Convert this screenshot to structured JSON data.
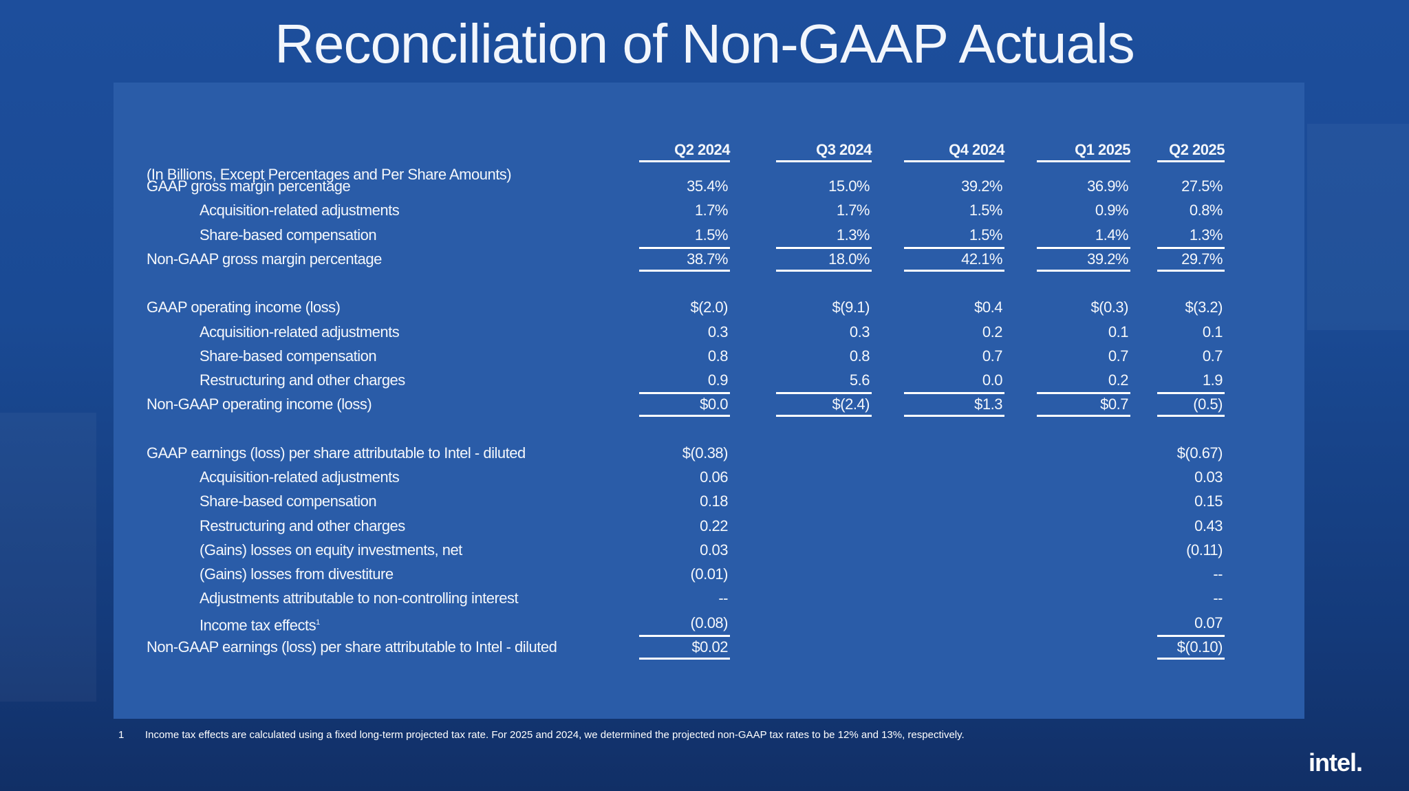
{
  "title": "Reconciliation of Non-GAAP Actuals",
  "table": {
    "columns": [
      "Q2 2024",
      "Q3 2024",
      "Q4 2024",
      "Q1 2025",
      "Q2 2025"
    ],
    "note": "(In Billions, Except Percentages and Per Share Amounts)",
    "rows": [
      {
        "label": "GAAP gross margin percentage",
        "indent": false,
        "total": false,
        "values": [
          "35.4%",
          "15.0%",
          "39.2%",
          "36.9%",
          "27.5%"
        ]
      },
      {
        "label": "Acquisition-related adjustments",
        "indent": true,
        "total": false,
        "values": [
          "1.7%",
          "1.7%",
          "1.5%",
          "0.9%",
          "0.8%"
        ]
      },
      {
        "label": "Share-based compensation",
        "indent": true,
        "total": false,
        "values": [
          "1.5%",
          "1.3%",
          "1.5%",
          "1.4%",
          "1.3%"
        ]
      },
      {
        "label": "Non-GAAP gross margin percentage",
        "indent": false,
        "total": true,
        "values": [
          "38.7%",
          "18.0%",
          "42.1%",
          "39.2%",
          "29.7%"
        ]
      },
      null,
      {
        "label": "GAAP operating income (loss)",
        "indent": false,
        "total": false,
        "values": [
          "$(2.0)",
          "$(9.1)",
          "$0.4",
          "$(0.3)",
          "$(3.2)"
        ]
      },
      {
        "label": "Acquisition-related adjustments",
        "indent": true,
        "total": false,
        "values": [
          "0.3",
          "0.3",
          "0.2",
          "0.1",
          "0.1"
        ]
      },
      {
        "label": "Share-based compensation",
        "indent": true,
        "total": false,
        "values": [
          "0.8",
          "0.8",
          "0.7",
          "0.7",
          "0.7"
        ]
      },
      {
        "label": "Restructuring and other charges",
        "indent": true,
        "total": false,
        "values": [
          "0.9",
          "5.6",
          "0.0",
          "0.2",
          "1.9"
        ]
      },
      {
        "label": "Non-GAAP operating income (loss)",
        "indent": false,
        "total": true,
        "values": [
          "$0.0",
          "$(2.4)",
          "$1.3",
          "$0.7",
          "(0.5)"
        ]
      },
      null,
      {
        "label": "GAAP earnings (loss) per share attributable to Intel - diluted",
        "indent": false,
        "total": false,
        "values": [
          "$(0.38)",
          "",
          "",
          "",
          "$(0.67)"
        ]
      },
      {
        "label": "Acquisition-related adjustments",
        "indent": true,
        "total": false,
        "values": [
          "0.06",
          "",
          "",
          "",
          "0.03"
        ]
      },
      {
        "label": "Share-based compensation",
        "indent": true,
        "total": false,
        "values": [
          "0.18",
          "",
          "",
          "",
          "0.15"
        ]
      },
      {
        "label": "Restructuring and other charges",
        "indent": true,
        "total": false,
        "values": [
          "0.22",
          "",
          "",
          "",
          "0.43"
        ]
      },
      {
        "label": "(Gains) losses on equity investments, net",
        "indent": true,
        "total": false,
        "values": [
          "0.03",
          "",
          "",
          "",
          "(0.11)"
        ]
      },
      {
        "label": "(Gains) losses from divestiture",
        "indent": true,
        "total": false,
        "values": [
          "(0.01)",
          "",
          "",
          "",
          "--"
        ]
      },
      {
        "label": "Adjustments attributable to non-controlling interest",
        "indent": true,
        "total": false,
        "values": [
          "--",
          "",
          "",
          "",
          "--"
        ]
      },
      {
        "label": "Income tax effects",
        "sup": "1",
        "indent": true,
        "total": false,
        "values": [
          "(0.08)",
          "",
          "",
          "",
          "0.07"
        ]
      },
      {
        "label": "Non-GAAP earnings (loss) per share attributable to Intel - diluted",
        "indent": false,
        "total": true,
        "values": [
          "$0.02",
          "",
          "",
          "",
          "$(0.10)"
        ]
      }
    ]
  },
  "footnote": {
    "number": "1",
    "text": "Income tax effects are calculated using a fixed long-term projected tax rate. For 2025 and 2024, we determined the projected non-GAAP tax rates to be 12% and 13%, respectively."
  },
  "logo": "intel."
}
